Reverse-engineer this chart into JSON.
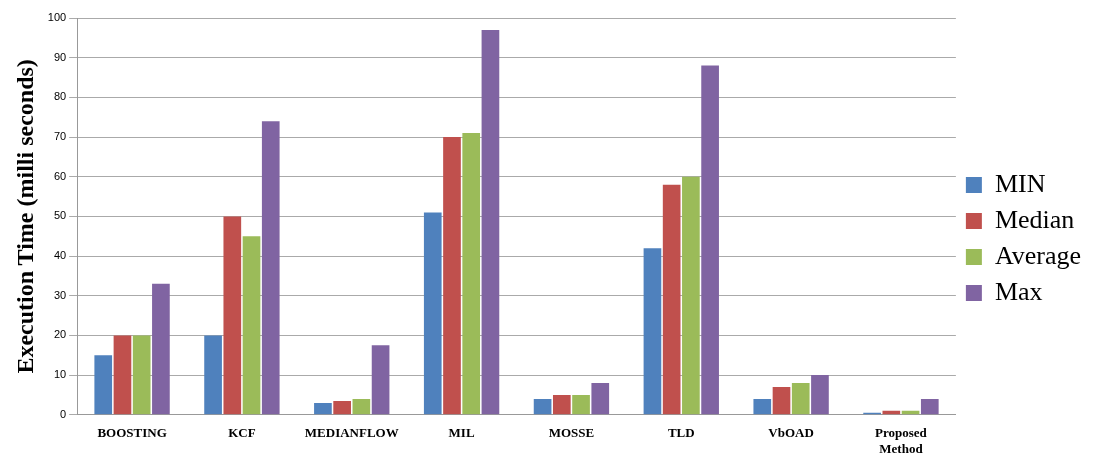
{
  "chart_data": {
    "type": "bar",
    "ylabel": "Execution Time (milli seconds)",
    "categories": [
      "BOOSTING",
      "KCF",
      "MEDIANFLOW",
      "MIL",
      "MOSSE",
      "TLD",
      "VbOAD",
      "Proposed\nMethod"
    ],
    "series": [
      {
        "name": "MIN",
        "color": "#4f81bd",
        "values": [
          15,
          20,
          3,
          51,
          4,
          42,
          4,
          0.5
        ]
      },
      {
        "name": "Median",
        "color": "#c0504d",
        "values": [
          20,
          50,
          3.5,
          70,
          5,
          58,
          7,
          1
        ]
      },
      {
        "name": "Average",
        "color": "#9bbb59",
        "values": [
          20,
          45,
          4,
          71,
          5,
          60,
          8,
          1
        ]
      },
      {
        "name": "Max",
        "color": "#8064a2",
        "values": [
          33,
          74,
          17.5,
          97,
          8,
          88,
          10,
          4
        ]
      }
    ],
    "ylim": [
      0,
      100
    ],
    "yticks": [
      0,
      10,
      20,
      30,
      40,
      50,
      60,
      70,
      80,
      90,
      100
    ],
    "grid": "y",
    "legend": "right"
  }
}
